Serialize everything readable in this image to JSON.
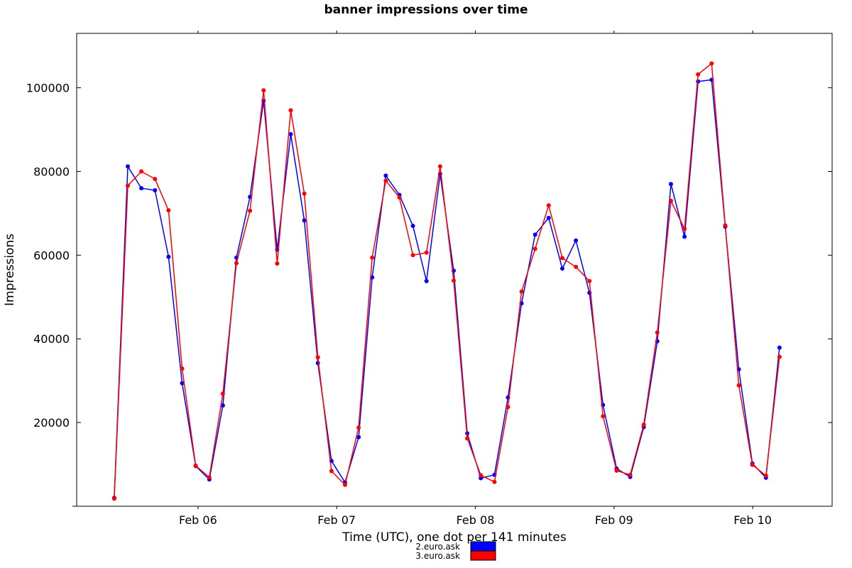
{
  "chart_data": {
    "type": "line",
    "title": "banner impressions over time",
    "xlabel": "Time (UTC), one dot per 141 minutes",
    "ylabel": "Impressions",
    "interval_minutes": 141,
    "x_start": "2016-02-05 09:30",
    "x_range": [
      "2016-02-05 03:00",
      "2016-02-10 13:45"
    ],
    "ylim": [
      0,
      113000
    ],
    "yticks": [
      20000,
      40000,
      60000,
      80000,
      100000
    ],
    "ytick_labels": [
      "20000",
      "40000",
      "60000",
      "80000",
      "100000"
    ],
    "xticks": [
      "2016-02-06 00:00",
      "2016-02-07 00:00",
      "2016-02-08 00:00",
      "2016-02-09 00:00",
      "2016-02-10 00:00"
    ],
    "xtick_labels": [
      "Feb 06",
      "Feb 07",
      "Feb 08",
      "Feb 09",
      "Feb 10"
    ],
    "grid": false,
    "legend_position": "bottom-center",
    "series": [
      {
        "name": "2.euro.ask",
        "color": "#0000ff",
        "values": [
          2000,
          81200,
          76000,
          75500,
          59600,
          29400,
          9600,
          6400,
          24100,
          59400,
          73900,
          96900,
          61300,
          88900,
          68300,
          34200,
          10800,
          5700,
          16500,
          54700,
          79000,
          74400,
          67000,
          53800,
          79400,
          56300,
          17400,
          6700,
          7500,
          26000,
          48500,
          64900,
          68900,
          56800,
          63500,
          51000,
          24200,
          9000,
          7000,
          18900,
          39400,
          77000,
          64400,
          101500,
          101900,
          66800,
          32700,
          10200,
          6800,
          37900
        ]
      },
      {
        "name": "3.euro.ask",
        "color": "#ff0000",
        "values": [
          1800,
          76600,
          80000,
          78200,
          70700,
          32900,
          9700,
          6900,
          26900,
          58100,
          70600,
          99400,
          58000,
          94600,
          74700,
          35600,
          8400,
          5100,
          18800,
          59400,
          77800,
          73800,
          60000,
          60600,
          81200,
          53900,
          16200,
          7400,
          5800,
          23700,
          51300,
          61500,
          71900,
          59300,
          57200,
          53800,
          21500,
          8500,
          7500,
          19500,
          41500,
          73000,
          66300,
          103200,
          105800,
          67100,
          28900,
          9900,
          7300,
          35700
        ]
      }
    ]
  }
}
